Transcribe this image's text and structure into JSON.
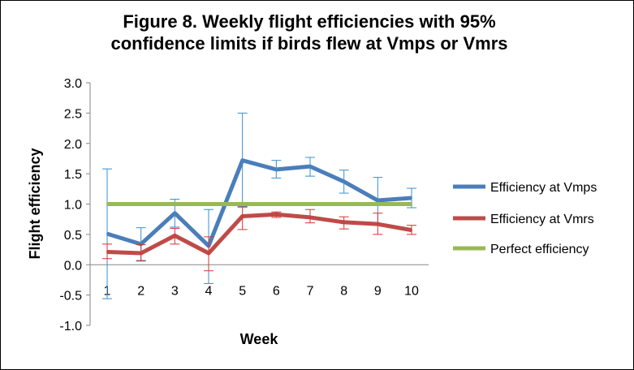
{
  "chart_data": {
    "type": "line",
    "title": "Figure 8. Weekly flight efficiencies with 95% confidence limits if birds flew at Vmps or Vmrs",
    "title_lines": [
      "Figure 8. Weekly flight efficiencies with 95%",
      "confidence limits if birds flew at Vmps or Vmrs"
    ],
    "xlabel": "Week",
    "ylabel": "Flight efficiency",
    "categories": [
      "1",
      "2",
      "3",
      "4",
      "5",
      "6",
      "7",
      "8",
      "9",
      "10"
    ],
    "ylim": [
      -1.0,
      3.0
    ],
    "yticks": [
      "3.0",
      "2.5",
      "2.0",
      "1.5",
      "1.0",
      "0.5",
      "0.0",
      "-0.5",
      "-1.0"
    ],
    "grid": false,
    "legend_position": "right",
    "series": [
      {
        "name": "Efficiency at Vmps",
        "color": "#4a7ebb",
        "values": [
          0.51,
          0.34,
          0.85,
          0.31,
          1.72,
          1.57,
          1.62,
          1.37,
          1.06,
          1.1
        ],
        "upper": [
          1.58,
          0.61,
          1.08,
          0.91,
          2.5,
          1.72,
          1.77,
          1.56,
          1.44,
          1.26
        ],
        "lower": [
          -0.56,
          0.07,
          0.62,
          -0.31,
          0.96,
          1.43,
          1.46,
          1.18,
          0.68,
          0.94
        ]
      },
      {
        "name": "Efficiency at Vmrs",
        "color": "#be4b48",
        "values": [
          0.21,
          0.19,
          0.48,
          0.19,
          0.8,
          0.83,
          0.78,
          0.7,
          0.67,
          0.57
        ],
        "upper": [
          0.34,
          0.33,
          0.6,
          0.46,
          0.95,
          0.87,
          0.91,
          0.79,
          0.85,
          0.65
        ],
        "lower": [
          0.1,
          0.06,
          0.34,
          -0.1,
          0.58,
          0.78,
          0.69,
          0.59,
          0.5,
          0.5
        ]
      },
      {
        "name": "Perfect efficiency",
        "color": "#98b954",
        "values": [
          1,
          1,
          1,
          1,
          1,
          1,
          1,
          1,
          1,
          1
        ]
      }
    ]
  }
}
